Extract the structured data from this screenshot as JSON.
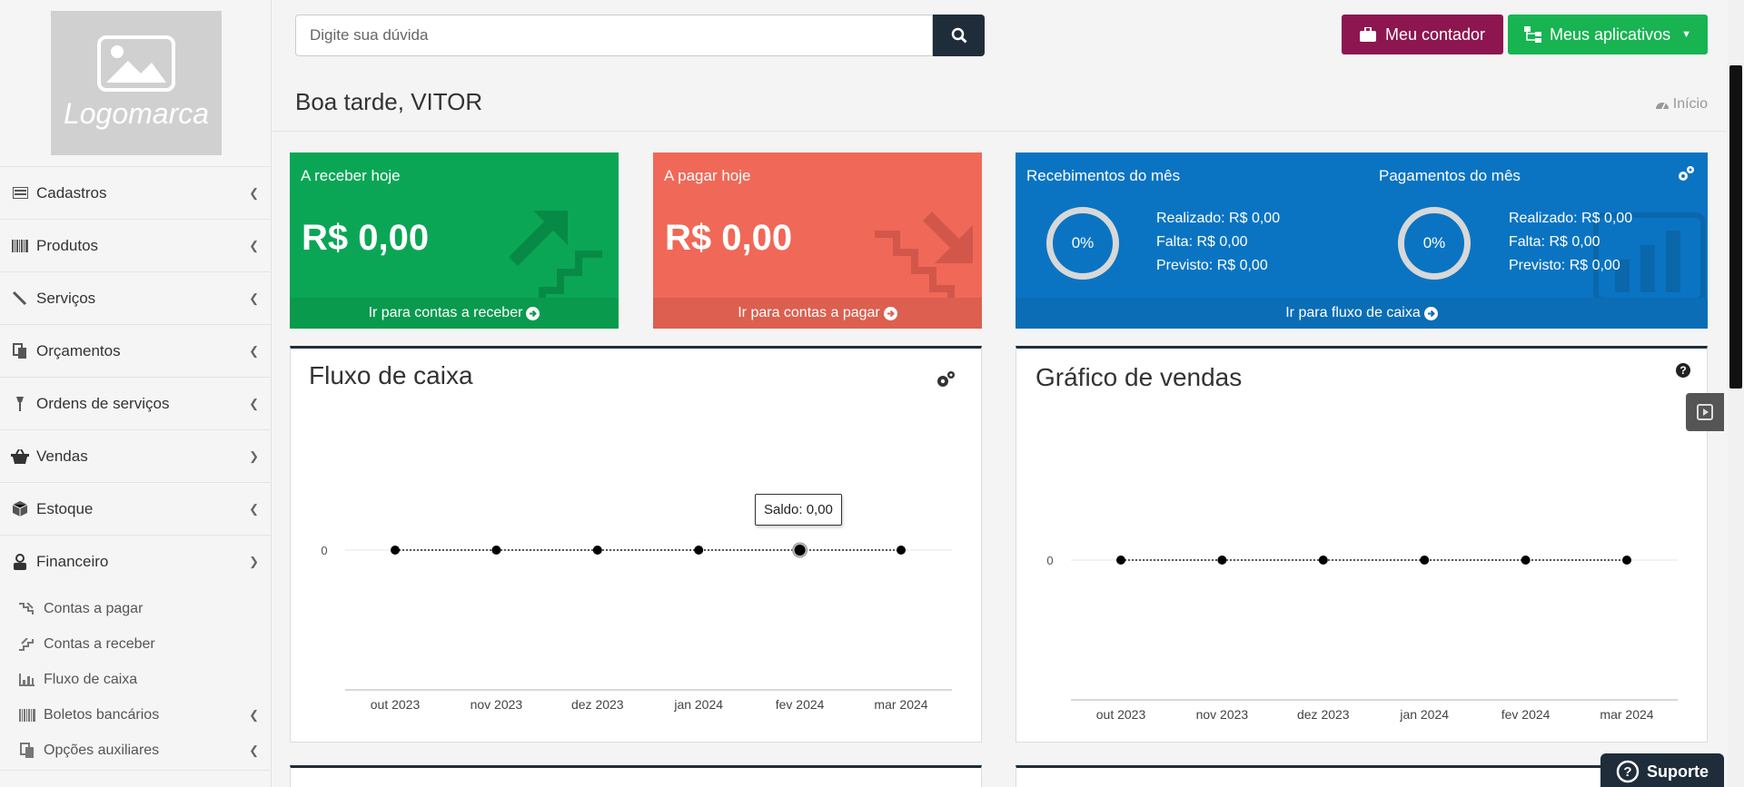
{
  "sidebar": {
    "logo_text": "Logomarca",
    "items": [
      {
        "label": "Cadastros",
        "icon": "id-card-icon"
      },
      {
        "label": "Produtos",
        "icon": "barcode-icon"
      },
      {
        "label": "Serviços",
        "icon": "wrench-icon"
      },
      {
        "label": "Orçamentos",
        "icon": "copy-icon"
      },
      {
        "label": "Ordens de serviços",
        "icon": "wrench-icon"
      },
      {
        "label": "Vendas",
        "icon": "basket-icon"
      },
      {
        "label": "Estoque",
        "icon": "cube-icon"
      },
      {
        "label": "Financeiro",
        "icon": "money-icon"
      }
    ],
    "financeiro_sub": [
      {
        "label": "Contas a pagar",
        "icon": "stairs-down-icon"
      },
      {
        "label": "Contas a receber",
        "icon": "stairs-up-icon"
      },
      {
        "label": "Fluxo de caixa",
        "icon": "bar-chart-icon"
      },
      {
        "label": "Boletos bancários",
        "icon": "barcode-icon"
      },
      {
        "label": "Opções auxiliares",
        "icon": "copy-icon"
      }
    ]
  },
  "header": {
    "search_placeholder": "Digite sua dúvida",
    "contador_label": "Meu contador",
    "apps_label": "Meus aplicativos",
    "greeting": "Boa tarde, VITOR",
    "breadcrumb": "Início"
  },
  "tiles": {
    "receber": {
      "title": "A receber hoje",
      "value": "R$ 0,00",
      "footer": "Ir para contas a receber",
      "color": "#0aa655"
    },
    "pagar": {
      "title": "A pagar hoje",
      "value": "R$ 0,00",
      "footer": "Ir para contas a pagar",
      "color": "#f06857"
    },
    "fluxo": {
      "recebimentos_title": "Recebimentos do mês",
      "pagamentos_title": "Pagamentos do mês",
      "rec_pct": "0%",
      "pag_pct": "0%",
      "rec_realizado": "Realizado: R$ 0,00",
      "rec_falta": "Falta: R$ 0,00",
      "rec_previsto": "Previsto: R$ 0,00",
      "pag_realizado": "Realizado: R$ 0,00",
      "pag_falta": "Falta: R$ 0,00",
      "pag_previsto": "Previsto: R$ 0,00",
      "footer": "Ir para fluxo de caixa",
      "color": "#0a74c3"
    }
  },
  "panels": {
    "fluxo_title": "Fluxo de caixa",
    "vendas_title": "Gráfico de vendas",
    "tooltip": "Saldo: 0,00"
  },
  "support_label": "Suporte",
  "chart_data": [
    {
      "type": "line",
      "x": [
        "out 2023",
        "nov 2023",
        "dez 2023",
        "jan 2024",
        "fev 2024",
        "mar 2024"
      ],
      "series": [
        {
          "name": "Saldo",
          "values": [
            0,
            0,
            0,
            0,
            0,
            0
          ]
        }
      ],
      "yticks": [
        "0"
      ]
    },
    {
      "type": "line",
      "x": [
        "out 2023",
        "nov 2023",
        "dez 2023",
        "jan 2024",
        "fev 2024",
        "mar 2024"
      ],
      "series": [
        {
          "values": [
            0,
            0,
            0,
            0,
            0,
            0
          ]
        }
      ],
      "yticks": [
        "0"
      ]
    }
  ]
}
